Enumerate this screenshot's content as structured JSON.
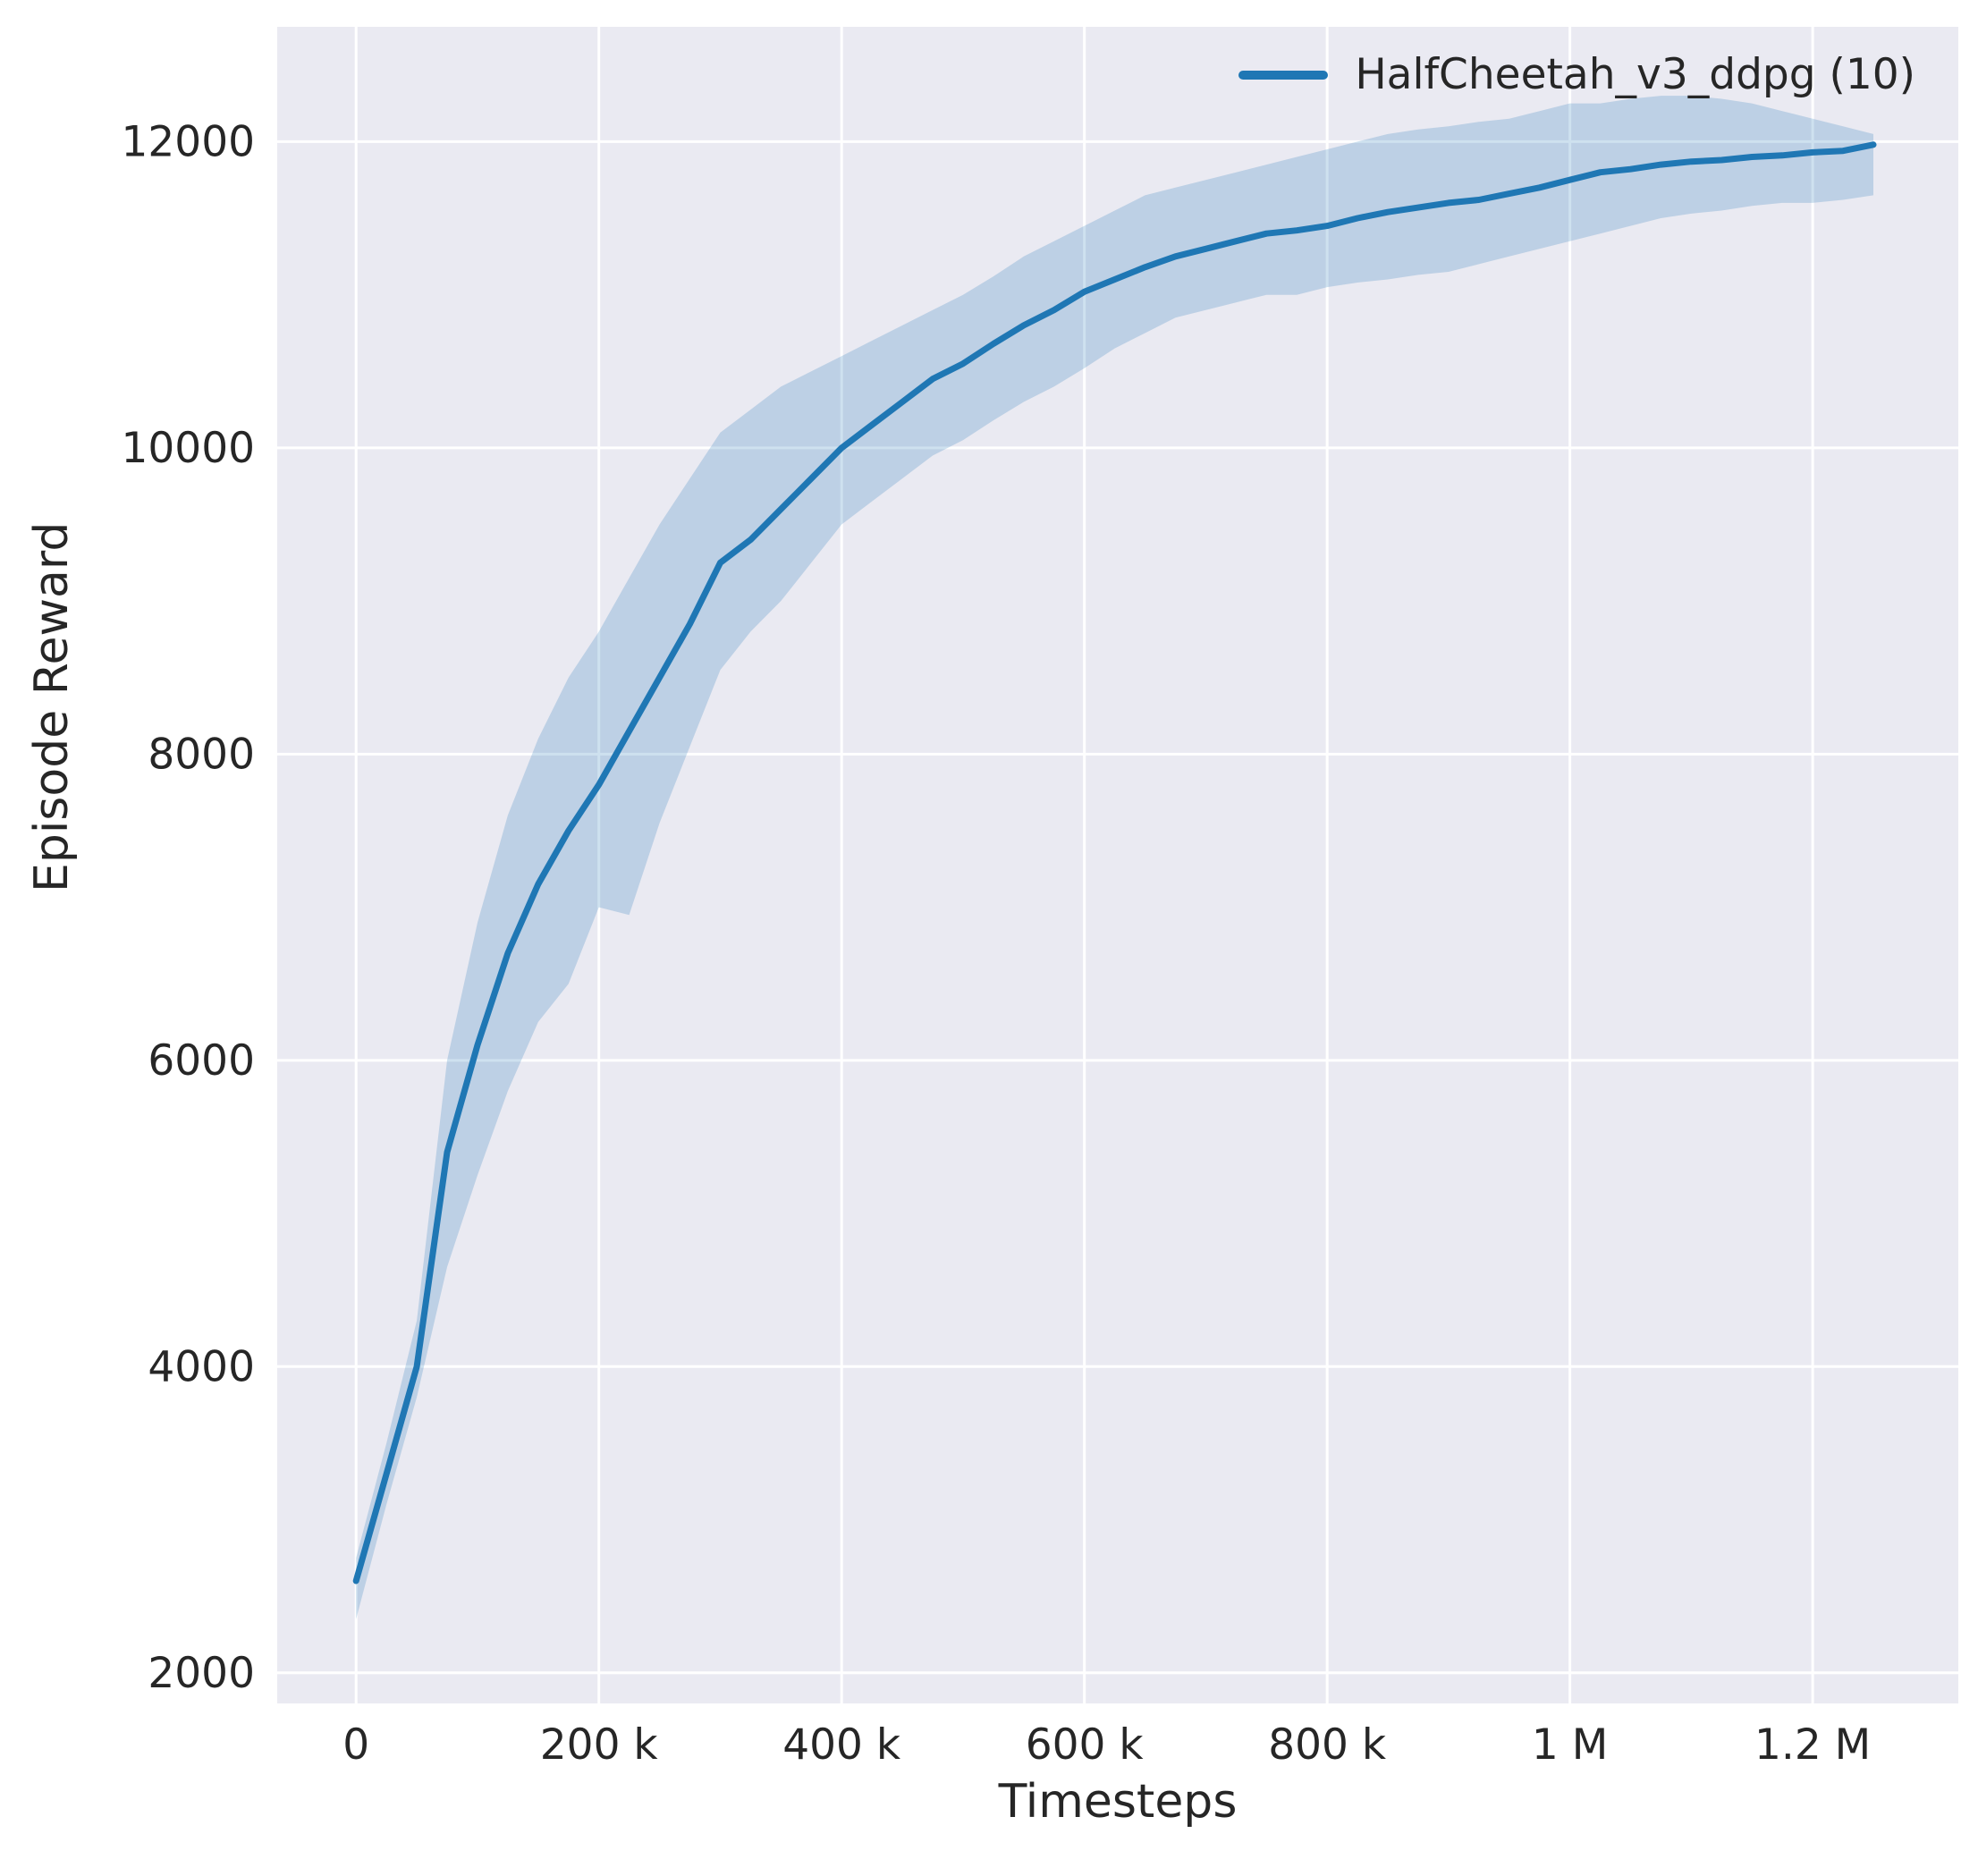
{
  "chart_data": {
    "type": "line",
    "title": "",
    "xlabel": "Timesteps",
    "ylabel": "Episode Reward",
    "grid": true,
    "legend_position": "upper right",
    "legend": [
      {
        "label": "HalfCheetah_v3_ddpg (10)",
        "color": "#1f77b4"
      }
    ],
    "background": "#eaeaf2",
    "gridline_color": "#ffffff",
    "band_alpha": 0.22,
    "x_unit": "thousands of timesteps",
    "xlim": [
      -65,
      1320
    ],
    "ylim": [
      1800,
      12750
    ],
    "x_ticks": [
      {
        "v": 0,
        "label": "0"
      },
      {
        "v": 200,
        "label": "200 k"
      },
      {
        "v": 400,
        "label": "400 k"
      },
      {
        "v": 600,
        "label": "600 k"
      },
      {
        "v": 800,
        "label": "800 k"
      },
      {
        "v": 1000,
        "label": "1 M"
      },
      {
        "v": 1200,
        "label": "1.2 M"
      }
    ],
    "y_ticks": [
      {
        "v": 2000,
        "label": "2000"
      },
      {
        "v": 4000,
        "label": "4000"
      },
      {
        "v": 6000,
        "label": "6000"
      },
      {
        "v": 8000,
        "label": "8000"
      },
      {
        "v": 10000,
        "label": "10000"
      },
      {
        "v": 12000,
        "label": "12000"
      }
    ],
    "series": [
      {
        "name": "HalfCheetah_v3_ddpg (10)",
        "color": "#1f77b4",
        "x": [
          0,
          25,
          50,
          75,
          100,
          125,
          150,
          175,
          200,
          225,
          250,
          275,
          300,
          325,
          350,
          375,
          400,
          425,
          450,
          475,
          500,
          525,
          550,
          575,
          600,
          625,
          650,
          675,
          700,
          725,
          750,
          775,
          800,
          825,
          850,
          875,
          900,
          925,
          950,
          975,
          1000,
          1025,
          1050,
          1075,
          1100,
          1125,
          1150,
          1175,
          1200,
          1225,
          1250
        ],
        "mean": [
          2600,
          3300,
          4000,
          5400,
          6100,
          6700,
          7150,
          7500,
          7800,
          8150,
          8500,
          8850,
          9250,
          9400,
          9600,
          9800,
          10000,
          10150,
          10300,
          10450,
          10550,
          10680,
          10800,
          10900,
          11020,
          11100,
          11180,
          11250,
          11300,
          11350,
          11400,
          11420,
          11450,
          11500,
          11540,
          11570,
          11600,
          11620,
          11660,
          11700,
          11750,
          11800,
          11820,
          11850,
          11870,
          11880,
          11900,
          11910,
          11930,
          11940,
          11980
        ],
        "band_lower": [
          2350,
          3100,
          3800,
          4650,
          5250,
          5800,
          6250,
          6500,
          7000,
          6950,
          7550,
          8050,
          8550,
          8800,
          9000,
          9250,
          9500,
          9650,
          9800,
          9950,
          10050,
          10180,
          10300,
          10400,
          10520,
          10650,
          10750,
          10850,
          10900,
          10950,
          11000,
          11000,
          11050,
          11080,
          11100,
          11130,
          11150,
          11200,
          11250,
          11300,
          11350,
          11400,
          11450,
          11500,
          11530,
          11550,
          11580,
          11600,
          11600,
          11620,
          11650
        ],
        "band_upper": [
          2750,
          3500,
          4300,
          6000,
          6900,
          7600,
          8100,
          8500,
          8800,
          9150,
          9500,
          9800,
          10100,
          10250,
          10400,
          10500,
          10600,
          10700,
          10800,
          10900,
          11000,
          11120,
          11250,
          11350,
          11450,
          11550,
          11650,
          11700,
          11750,
          11800,
          11850,
          11900,
          11950,
          12000,
          12050,
          12080,
          12100,
          12130,
          12150,
          12200,
          12250,
          12250,
          12280,
          12300,
          12300,
          12280,
          12250,
          12200,
          12150,
          12100,
          12050
        ]
      }
    ]
  }
}
